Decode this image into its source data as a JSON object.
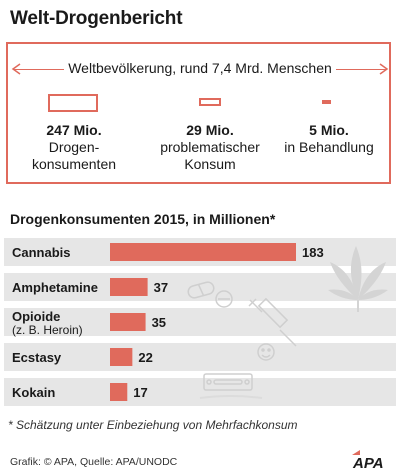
{
  "title": "Welt-Drogenbericht",
  "population": {
    "label": "Weltbevölkerung, rund 7,4 Mrd. Menschen",
    "items": [
      {
        "value": "247 Mio.",
        "text": "Drogen-\nkonsumenten"
      },
      {
        "value": "29 Mio.",
        "text": "problematischer\nKonsum"
      },
      {
        "value": "5 Mio.",
        "text": "in Behandlung"
      }
    ]
  },
  "colors": {
    "accent": "#e06a5c",
    "gray_bg": "#e6e6e6",
    "illustration": "#d4d4d4"
  },
  "chart_data": {
    "type": "bar",
    "orientation": "horizontal",
    "title": "Drogenkonsumenten 2015, in Millionen*",
    "categories": [
      "Cannabis",
      "Amphetamine",
      "Opioide",
      "Ecstasy",
      "Kokain"
    ],
    "category_notes": [
      "",
      "",
      "(z. B. Heroin)",
      "",
      ""
    ],
    "values": [
      183,
      37,
      35,
      22,
      17
    ],
    "value_labels": [
      "183",
      "37",
      "35",
      "22",
      "17"
    ]
  },
  "footnote": "* Schätzung unter Einbeziehung von Mehrfachkonsum",
  "source": "Grafik: © APA, Quelle: APA/UNODC",
  "logo_text": "APA"
}
